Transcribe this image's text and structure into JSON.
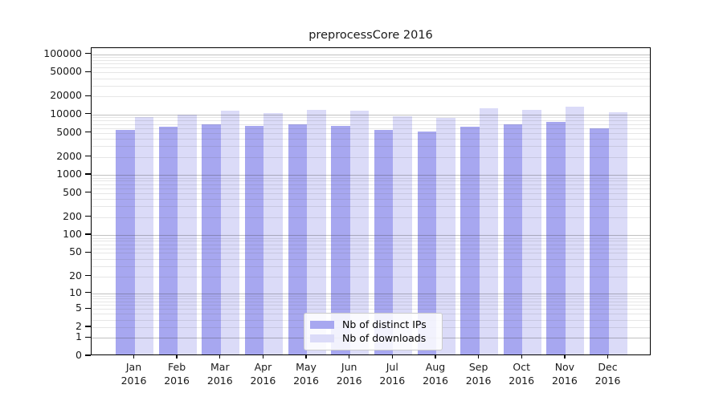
{
  "title": "preprocessCore 2016",
  "chart_data": {
    "type": "bar",
    "title": "preprocessCore 2016",
    "categories": [
      "Jan 2016",
      "Feb 2016",
      "Mar 2016",
      "Apr 2016",
      "May 2016",
      "Jun 2016",
      "Jul 2016",
      "Aug 2016",
      "Sep 2016",
      "Oct 2016",
      "Nov 2016",
      "Dec 2016"
    ],
    "series": [
      {
        "name": "Nb of distinct IPs",
        "color": "#a7a7f0",
        "values": [
          5200,
          5850,
          6450,
          6050,
          6500,
          6100,
          5200,
          4950,
          5900,
          6550,
          7200,
          5550
        ]
      },
      {
        "name": "Nb of downloads",
        "color": "#dbdbf8",
        "values": [
          8500,
          9300,
          10800,
          10000,
          11300,
          10800,
          8800,
          8350,
          11800,
          11200,
          12700,
          10200
        ]
      }
    ],
    "xlabel": "",
    "ylabel": "",
    "y_scale": "log1p",
    "y_ticks": [
      100000,
      50000,
      20000,
      10000,
      5000,
      2000,
      1000,
      500,
      200,
      100,
      50,
      20,
      10,
      5,
      2,
      1,
      0
    ],
    "ylim": [
      0,
      126000
    ],
    "grid": {
      "major_decades": true,
      "minor_multiples": true
    },
    "legend_position": "lower-center"
  }
}
